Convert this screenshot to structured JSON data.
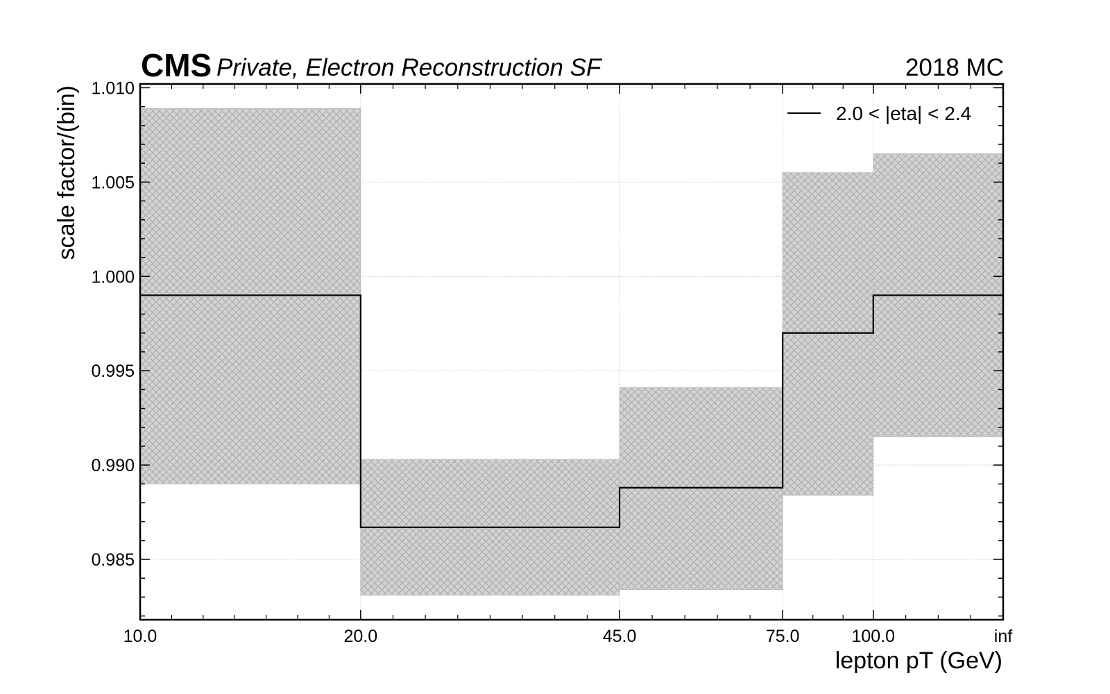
{
  "chart_data": {
    "type": "step",
    "title_bold": "CMS",
    "title_italic": "Private, Electron Reconstruction SF",
    "title_right": "2018 MC",
    "xlabel": "lepton pT (GeV)",
    "ylabel": "scale factor/(bin)",
    "x_edges": [
      "10.0",
      "20.0",
      "45.0",
      "75.0",
      "100.0",
      "inf"
    ],
    "x_tick_labels": [
      "10.0",
      "20.0",
      "45.0",
      "75.0",
      "100.0",
      "inf"
    ],
    "ylim": [
      0.9818,
      1.0102
    ],
    "y_ticks": [
      0.985,
      0.99,
      0.995,
      1.0,
      1.005,
      1.01
    ],
    "y_tick_labels": [
      "0.985",
      "0.990",
      "0.995",
      "1.000",
      "1.005",
      "1.010"
    ],
    "grid": true,
    "legend_position": "top-right",
    "series": [
      {
        "name": "2.0 < |eta| < 2.4",
        "color": "#000000",
        "values": [
          0.999,
          0.9867,
          0.9888,
          0.997,
          0.999
        ],
        "unc_low": [
          0.989,
          0.9831,
          0.9834,
          0.9884,
          0.9915
        ],
        "unc_high": [
          1.0089,
          0.9903,
          0.9941,
          1.0055,
          1.0065
        ]
      }
    ],
    "band_fill": "#d3d3d3",
    "band_hatch": "#a9a9a9"
  }
}
